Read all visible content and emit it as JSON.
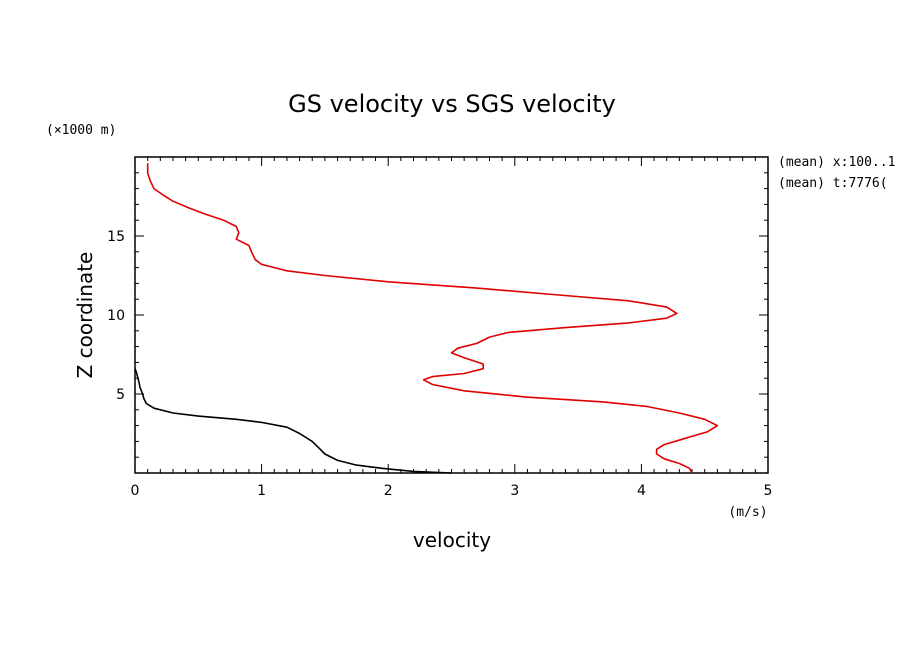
{
  "chart_data": {
    "type": "line",
    "title": "GS velocity vs SGS velocity",
    "xlabel": "velocity",
    "ylabel": "Z coordinate",
    "x_unit": "(m/s)",
    "y_unit": "(×1000 m)",
    "annotations": [
      "(mean) x:100..1",
      "(mean) t:7776("
    ],
    "xlim": [
      0,
      5
    ],
    "ylim": [
      0,
      20
    ],
    "x_ticks": [
      "0",
      "1",
      "2",
      "3",
      "4",
      "5"
    ],
    "y_ticks": [
      "5",
      "10",
      "15"
    ],
    "grid": false,
    "series": [
      {
        "color": "#e00000",
        "points": [
          [
            4.4,
            0.0
          ],
          [
            4.38,
            0.3
          ],
          [
            4.3,
            0.6
          ],
          [
            4.18,
            0.9
          ],
          [
            4.12,
            1.2
          ],
          [
            4.12,
            1.5
          ],
          [
            4.18,
            1.8
          ],
          [
            4.35,
            2.2
          ],
          [
            4.52,
            2.6
          ],
          [
            4.6,
            3.0
          ],
          [
            4.5,
            3.4
          ],
          [
            4.3,
            3.8
          ],
          [
            4.05,
            4.2
          ],
          [
            3.7,
            4.5
          ],
          [
            3.1,
            4.8
          ],
          [
            2.6,
            5.2
          ],
          [
            2.35,
            5.6
          ],
          [
            2.28,
            5.9
          ],
          [
            2.35,
            6.1
          ],
          [
            2.6,
            6.3
          ],
          [
            2.75,
            6.6
          ],
          [
            2.75,
            6.9
          ],
          [
            2.6,
            7.3
          ],
          [
            2.5,
            7.6
          ],
          [
            2.55,
            7.9
          ],
          [
            2.7,
            8.2
          ],
          [
            2.8,
            8.6
          ],
          [
            2.95,
            8.9
          ],
          [
            3.4,
            9.2
          ],
          [
            3.9,
            9.5
          ],
          [
            4.2,
            9.8
          ],
          [
            4.28,
            10.1
          ],
          [
            4.2,
            10.5
          ],
          [
            3.9,
            10.9
          ],
          [
            3.3,
            11.3
          ],
          [
            2.7,
            11.7
          ],
          [
            2.0,
            12.1
          ],
          [
            1.5,
            12.5
          ],
          [
            1.2,
            12.8
          ],
          [
            1.0,
            13.2
          ],
          [
            0.95,
            13.5
          ],
          [
            0.92,
            14.0
          ],
          [
            0.9,
            14.4
          ],
          [
            0.8,
            14.8
          ],
          [
            0.82,
            15.2
          ],
          [
            0.8,
            15.6
          ],
          [
            0.7,
            16.0
          ],
          [
            0.55,
            16.4
          ],
          [
            0.42,
            16.8
          ],
          [
            0.3,
            17.2
          ],
          [
            0.22,
            17.6
          ],
          [
            0.15,
            18.0
          ],
          [
            0.12,
            18.5
          ],
          [
            0.1,
            19.0
          ],
          [
            0.1,
            19.6
          ]
        ]
      },
      {
        "color": "#000000",
        "points": [
          [
            2.5,
            0.0
          ],
          [
            2.2,
            0.1
          ],
          [
            1.95,
            0.3
          ],
          [
            1.75,
            0.5
          ],
          [
            1.6,
            0.8
          ],
          [
            1.5,
            1.2
          ],
          [
            1.45,
            1.6
          ],
          [
            1.4,
            2.0
          ],
          [
            1.3,
            2.5
          ],
          [
            1.2,
            2.9
          ],
          [
            1.0,
            3.2
          ],
          [
            0.8,
            3.4
          ],
          [
            0.5,
            3.6
          ],
          [
            0.3,
            3.8
          ],
          [
            0.15,
            4.1
          ],
          [
            0.09,
            4.4
          ],
          [
            0.07,
            4.7
          ],
          [
            0.06,
            5.0
          ],
          [
            0.04,
            5.4
          ],
          [
            0.03,
            5.8
          ],
          [
            0.02,
            6.1
          ],
          [
            0.01,
            6.4
          ],
          [
            0.0,
            6.6
          ]
        ]
      }
    ]
  }
}
